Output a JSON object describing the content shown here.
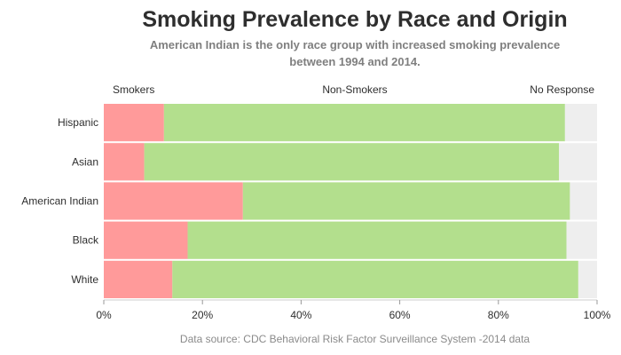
{
  "chart_data": {
    "type": "bar",
    "stacked": true,
    "orientation": "horizontal",
    "title": "Smoking Prevalence by Race and Origin",
    "subtitle_lines": [
      "American Indian is the only race group with increased smoking prevalence",
      "between 1994 and 2014."
    ],
    "source": "Data source: CDC Behavioral Risk Factor Surveillance System -2014 data",
    "categories": [
      "Hispanic",
      "Asian",
      "American Indian",
      "Black",
      "White"
    ],
    "series": [
      {
        "name": "Smokers",
        "color": "#ff9a9a",
        "values": [
          12.2,
          8.2,
          28.2,
          17.0,
          13.9
        ]
      },
      {
        "name": "Non-Smokers",
        "color": "#b3df8d",
        "values": [
          81.3,
          84.1,
          66.3,
          76.8,
          82.3
        ]
      },
      {
        "name": "No Response",
        "color": "#eeeeee",
        "values": [
          6.5,
          7.7,
          5.5,
          6.2,
          3.8
        ]
      }
    ],
    "xlim": [
      0,
      100
    ],
    "x_ticks": [
      "0%",
      "20%",
      "40%",
      "60%",
      "80%",
      "100%"
    ],
    "x_tick_values": [
      0,
      20,
      40,
      60,
      80,
      100
    ],
    "legend_position": "top"
  }
}
